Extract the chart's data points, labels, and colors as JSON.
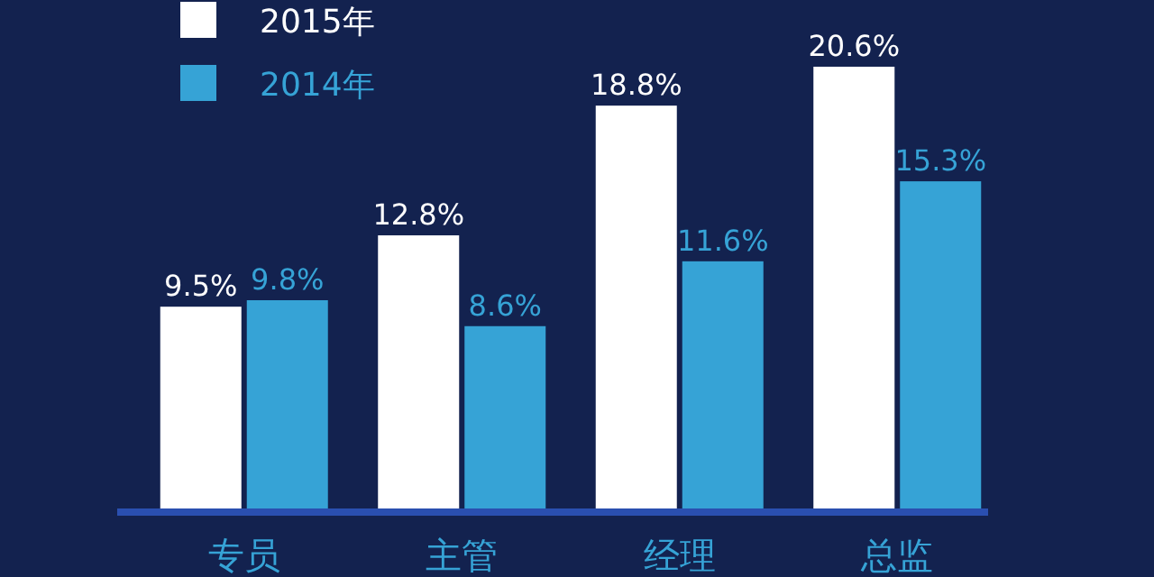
{
  "chart_data": {
    "type": "bar",
    "categories": [
      "专员",
      "主管",
      "经理",
      "总监"
    ],
    "series": [
      {
        "name": "2015年",
        "color": "#ffffff",
        "values": [
          9.5,
          12.8,
          18.8,
          20.6
        ],
        "value_labels": [
          "9.5%",
          "12.8%",
          "18.8%",
          "20.6%"
        ]
      },
      {
        "name": "2014年",
        "color": "#36a3d6",
        "values": [
          9.8,
          8.6,
          11.6,
          15.3
        ],
        "value_labels": [
          "9.8%",
          "8.6%",
          "11.6%",
          "15.3%"
        ]
      }
    ],
    "legend": "top left",
    "grid": false
  }
}
